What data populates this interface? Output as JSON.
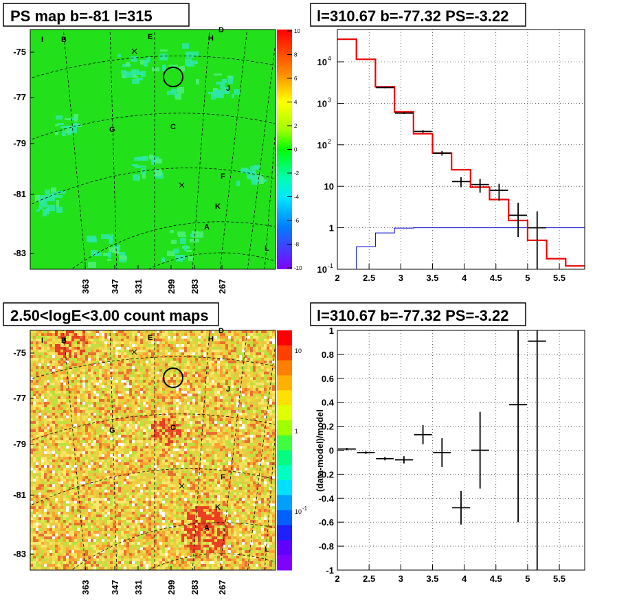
{
  "panels": {
    "tl_title": "PS map b=-81 l=315",
    "tr_title": "l=310.67 b=-77.32 PS=-3.22",
    "bl_title": "2.50<logE<3.00 count maps",
    "br_title": "l=310.67 b=-77.32 PS=-3.22",
    "br_ylabel": "(data-model)/model"
  },
  "map": {
    "lat_ticks": [
      "-75",
      "-77",
      "-79",
      "-81",
      "-83"
    ],
    "lon_ticks": [
      "363",
      "347",
      "331",
      "299",
      "283",
      "267"
    ],
    "source_labels": [
      "I",
      "B",
      "E",
      "D",
      "H",
      "J",
      "G",
      "C",
      "F",
      "K",
      "A",
      "L"
    ],
    "ps_colorbar_ticks": [
      "10",
      "8",
      "6",
      "4",
      "2",
      "0",
      "-2",
      "-4",
      "-6",
      "-8",
      "-10"
    ],
    "count_colorbar_ticks": [
      "10",
      "1",
      "10",
      "-1"
    ]
  },
  "chart_data": [
    {
      "type": "map",
      "title": "PS map b=-81 l=315",
      "colorbar_range": [
        -10,
        10
      ],
      "colors": {
        "background": "#22e01a",
        "cyan_patches": "#2ee8a8"
      }
    },
    {
      "type": "line",
      "title": "l=310.67 b=-77.32 PS=-3.22",
      "xlim": [
        2.0,
        5.9
      ],
      "ylim": [
        0.1,
        60000
      ],
      "yscale": "log",
      "x_ticks": [
        "2",
        "2.5",
        "3",
        "3.5",
        "4",
        "4.5",
        "5",
        "5.5"
      ],
      "y_ticks": [
        "10^-1",
        "1",
        "10",
        "10^2",
        "10^3",
        "10^4"
      ],
      "grid": true,
      "edges": [
        2.0,
        2.3,
        2.6,
        2.9,
        3.2,
        3.5,
        3.8,
        4.1,
        4.4,
        4.7,
        5.0,
        5.3,
        5.6,
        5.9
      ],
      "series": [
        {
          "values": [
            35000,
            11500,
            2500,
            620,
            185,
            63,
            25,
            9.5,
            4.8,
            1.5,
            0.5,
            0.18,
            0.12
          ],
          "color": "#ee0000"
        },
        {
          "values": [
            0.09,
            0.35,
            0.75,
            0.98,
            1.0,
            1.0,
            1.0,
            1.0,
            1.0,
            1.0,
            1.0,
            1.0,
            1.0
          ],
          "color": "#0000cc"
        },
        {
          "x": [
            2.75,
            3.05,
            3.35,
            3.65,
            3.95,
            4.25,
            4.55,
            4.85,
            5.15
          ],
          "y": [
            2400,
            580,
            210,
            63,
            13,
            11,
            8,
            2,
            1
          ],
          "yerr_low": [
            100,
            30,
            16,
            8,
            3.5,
            4,
            3.5,
            1.4,
            0.9
          ],
          "yerr_high": [
            100,
            30,
            16,
            8,
            3.5,
            4,
            3.5,
            2,
            1.5
          ],
          "color": "#000000"
        }
      ]
    },
    {
      "type": "map",
      "title": "2.50<logE<3.00 count maps",
      "colors": {
        "dominant": "#e8c840",
        "hot": "#e84020"
      }
    },
    {
      "type": "scatter",
      "title": "l=310.67 b=-77.32 PS=-3.22",
      "ylabel": "(data-model)/model",
      "xlim": [
        2.0,
        5.9
      ],
      "ylim": [
        -1,
        1
      ],
      "grid": true,
      "x_ticks": [
        "2",
        "2.5",
        "3",
        "3.5",
        "4",
        "4.5",
        "5",
        "5.5"
      ],
      "y_ticks": [
        "-1",
        "-0.8",
        "-0.6",
        "-0.4",
        "-0.2",
        "0",
        "0.2",
        "0.4",
        "0.6",
        "0.8",
        "1"
      ],
      "points": [
        {
          "x": 2.15,
          "y": 0.01,
          "err": 0.01
        },
        {
          "x": 2.45,
          "y": -0.02,
          "err": 0.01
        },
        {
          "x": 2.75,
          "y": -0.07,
          "err": 0.015
        },
        {
          "x": 3.05,
          "y": -0.08,
          "err": 0.03
        },
        {
          "x": 3.35,
          "y": 0.13,
          "err": 0.08
        },
        {
          "x": 3.65,
          "y": -0.02,
          "err": 0.12
        },
        {
          "x": 3.95,
          "y": -0.48,
          "err": 0.14
        },
        {
          "x": 4.25,
          "y": 0.0,
          "err": 0.32
        },
        {
          "x": 4.85,
          "y": 0.38,
          "err": 0.98
        },
        {
          "x": 5.15,
          "y": 0.91,
          "err": 1.95
        }
      ]
    }
  ]
}
